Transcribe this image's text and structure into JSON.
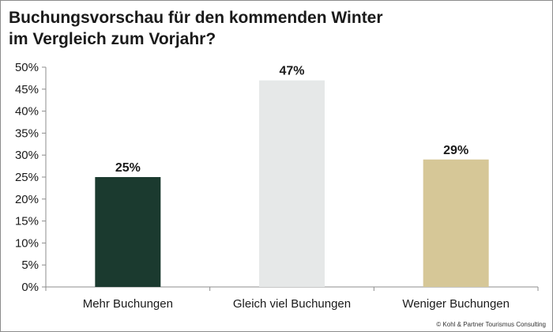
{
  "chart_data": {
    "type": "bar",
    "title_lines": [
      "Buchungsvorschau für den kommenden Winter",
      "im Vergleich zum Vorjahr?"
    ],
    "categories": [
      "Mehr Buchungen",
      "Gleich viel Buchungen",
      "Weniger Buchungen"
    ],
    "values": [
      25,
      47,
      29
    ],
    "value_labels": [
      "25%",
      "47%",
      "29%"
    ],
    "colors": [
      "#1b3a2f",
      "#e6e8e8",
      "#d6c797"
    ],
    "ylim": [
      0,
      50
    ],
    "yticks": [
      0,
      5,
      10,
      15,
      20,
      25,
      30,
      35,
      40,
      45,
      50
    ],
    "ytick_labels": [
      "0%",
      "5%",
      "10%",
      "15%",
      "20%",
      "25%",
      "30%",
      "35%",
      "40%",
      "45%",
      "50%"
    ],
    "xlabel": "",
    "ylabel": "",
    "grid": false,
    "legend": false
  },
  "footer": {
    "copyright": "© Kohl & Partner Tourismus Consulting"
  }
}
